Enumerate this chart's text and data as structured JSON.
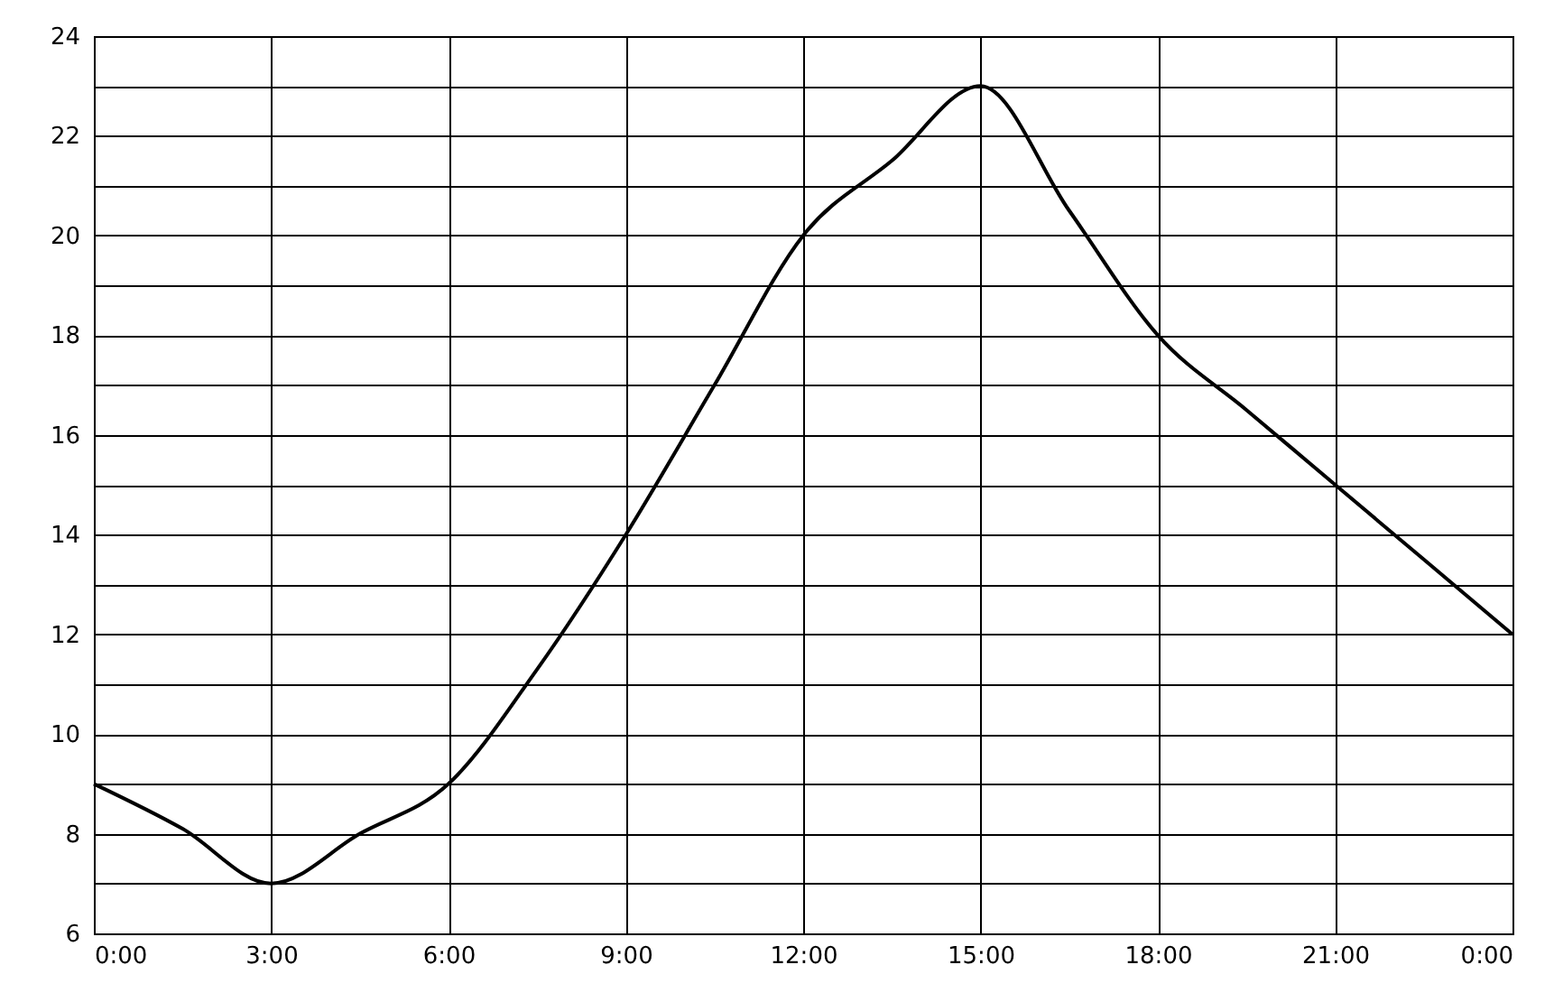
{
  "chart_data": {
    "type": "line",
    "x": [
      0,
      1.5,
      3,
      4.5,
      6,
      7.5,
      9,
      10.5,
      12,
      13.5,
      15,
      16.5,
      18,
      19.5,
      21,
      22.5,
      24
    ],
    "series": [
      {
        "color": "#000000",
        "values": [
          9,
          8.1,
          7,
          8,
          9,
          11.3,
          14,
          17,
          20,
          21.5,
          23,
          20.5,
          18,
          16.5,
          15,
          13.5,
          12
        ]
      }
    ],
    "xlim": [
      0,
      24
    ],
    "xticks": [
      {
        "value": 0,
        "label": "0:00"
      },
      {
        "value": 3,
        "label": "3:00"
      },
      {
        "value": 6,
        "label": "6:00"
      },
      {
        "value": 9,
        "label": "9:00"
      },
      {
        "value": 12,
        "label": "12:00"
      },
      {
        "value": 15,
        "label": "15:00"
      },
      {
        "value": 18,
        "label": "18:00"
      },
      {
        "value": 21,
        "label": "21:00"
      },
      {
        "value": 24,
        "label": "0:00"
      }
    ],
    "ylim": [
      6,
      24
    ],
    "yticks": [
      6,
      {
        "value": 7,
        "label": null
      },
      8,
      {
        "value": 9,
        "label": null
      },
      10,
      {
        "value": 11,
        "label": null
      },
      12,
      {
        "value": 13,
        "label": null
      },
      14,
      {
        "value": 15,
        "label": null
      },
      16,
      {
        "value": 17,
        "label": null
      },
      18,
      {
        "value": 19,
        "label": null
      },
      20,
      {
        "value": 21,
        "label": null
      },
      22,
      {
        "value": 23,
        "label": null
      },
      24
    ],
    "grid": true,
    "line_style": "solid",
    "marker": "none"
  }
}
